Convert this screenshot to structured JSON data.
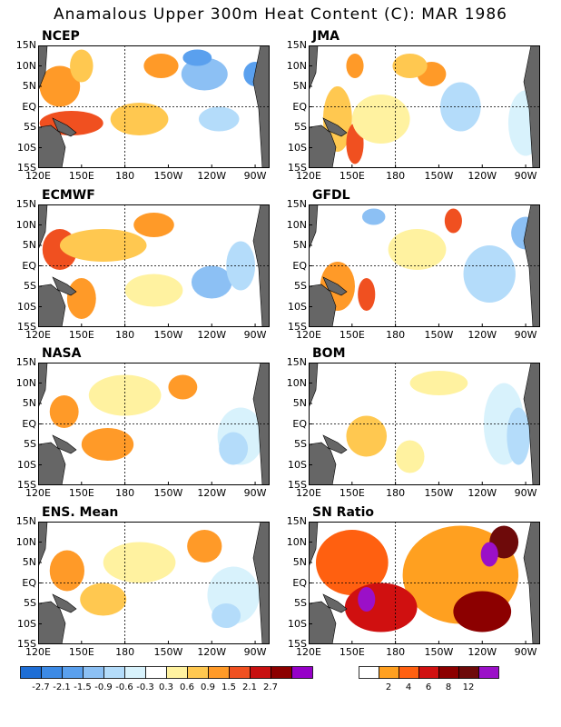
{
  "title": "Anamalous Upper 300m Heat Content (C): MAR 1986",
  "lat_labels": [
    "15N",
    "10N",
    "5N",
    "EQ",
    "5S",
    "10S",
    "15S"
  ],
  "lon_labels": [
    "120E",
    "150E",
    "180",
    "150W",
    "120W",
    "90W"
  ],
  "panels": [
    {
      "name": "NCEP"
    },
    {
      "name": "JMA"
    },
    {
      "name": "ECMWF"
    },
    {
      "name": "GFDL"
    },
    {
      "name": "NASA"
    },
    {
      "name": "BOM"
    },
    {
      "name": "ENS. Mean"
    },
    {
      "name": "SN Ratio"
    }
  ],
  "anomaly_colorbar": {
    "labels": [
      "-2.7",
      "-2.1",
      "-1.5",
      "-0.9",
      "-0.6",
      "-0.3",
      "0.3",
      "0.6",
      "0.9",
      "1.5",
      "2.1",
      "2.7"
    ],
    "colors": [
      "#1e6ed6",
      "#3c8ae6",
      "#5aa0ee",
      "#8cc0f4",
      "#b4dcfa",
      "#d8f2fc",
      "#ffffff",
      "#fff2a0",
      "#ffc850",
      "#ff9a28",
      "#f05020",
      "#c81010",
      "#8c0000",
      "#9600c8"
    ]
  },
  "sn_colorbar": {
    "labels": [
      "2",
      "4",
      "6",
      "8",
      "12"
    ],
    "colors": [
      "#ffffff",
      "#ffa020",
      "#ff6010",
      "#d01010",
      "#8c0000",
      "#6e0a0a",
      "#9b10c8"
    ]
  },
  "colors": {
    "land": "#666666"
  }
}
